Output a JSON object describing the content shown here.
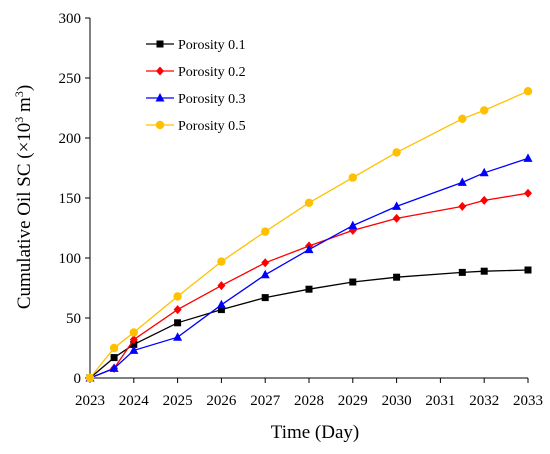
{
  "chart_data": {
    "type": "line",
    "xlabel": "Time (Day)",
    "ylabel_main": "Cumulative Oil SC (×10",
    "ylabel_exp": "3",
    "ylabel_unit": " m",
    "ylabel_unit_exp": "3",
    "ylabel_close": ")",
    "xlim": [
      2023,
      2033
    ],
    "ylim": [
      0,
      300
    ],
    "x_ticks": [
      "2023",
      "2024",
      "2025",
      "2026",
      "2027",
      "2028",
      "2029",
      "2030",
      "2031",
      "2032",
      "2033"
    ],
    "y_ticks": [
      "0",
      "50",
      "100",
      "150",
      "200",
      "250",
      "300"
    ],
    "legend_position": "top-left",
    "grid": false,
    "series": [
      {
        "name": "Porosity 0.1",
        "color": "#000000",
        "marker": "square",
        "x": [
          2023,
          2023.55,
          2024,
          2025,
          2026,
          2027,
          2028,
          2029,
          2030,
          2031.5,
          2032,
          2033
        ],
        "y": [
          0,
          17,
          28,
          46,
          57,
          67,
          74,
          80,
          84,
          88,
          89,
          90
        ]
      },
      {
        "name": "Porosity 0.2",
        "color": "#ff0000",
        "marker": "diamond",
        "x": [
          2023,
          2023.55,
          2024,
          2025,
          2026,
          2027,
          2028,
          2029,
          2030,
          2031.5,
          2032,
          2033
        ],
        "y": [
          0,
          8,
          32,
          57,
          77,
          96,
          110,
          123,
          133,
          143,
          148,
          154
        ]
      },
      {
        "name": "Porosity 0.3",
        "color": "#0000ff",
        "marker": "triangle",
        "x": [
          2023,
          2023.55,
          2024,
          2025,
          2026,
          2027,
          2028,
          2029,
          2030,
          2031.5,
          2032,
          2033
        ],
        "y": [
          0,
          8,
          23,
          34,
          61,
          86,
          107,
          127,
          143,
          163,
          171,
          183
        ]
      },
      {
        "name": "Porosity 0.5",
        "color": "#ffc000",
        "marker": "circle",
        "x": [
          2023,
          2023.55,
          2024,
          2025,
          2026,
          2027,
          2028,
          2029,
          2030,
          2031.5,
          2032,
          2033
        ],
        "y": [
          0,
          25,
          38,
          68,
          97,
          122,
          146,
          167,
          188,
          216,
          223,
          239
        ]
      }
    ]
  }
}
